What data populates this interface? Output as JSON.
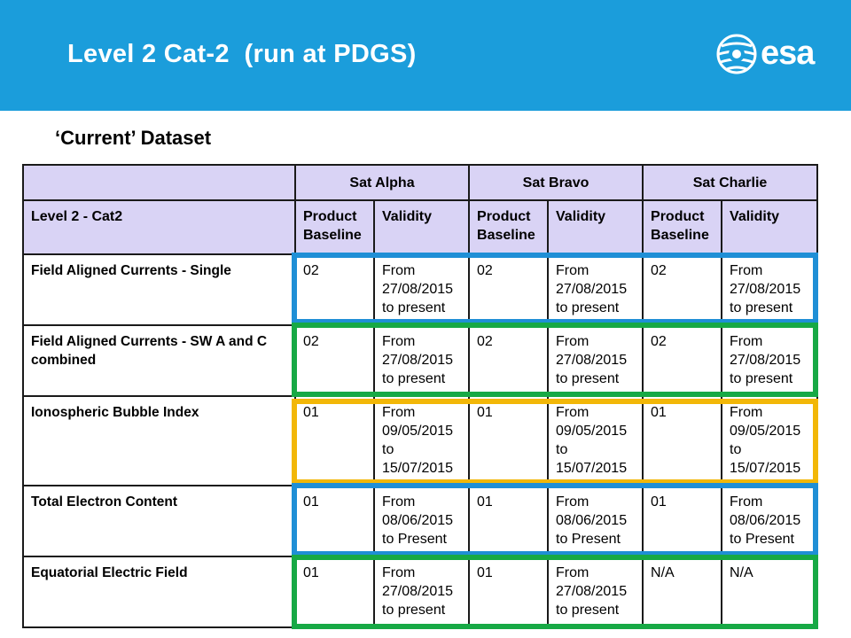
{
  "header": {
    "title": "Level 2 Cat-2  (run at PDGS)",
    "logo_text": "esa",
    "colors": {
      "banner": "#1b9ddb",
      "text": "#ffffff"
    }
  },
  "subtitle": "‘Current’ Dataset",
  "table": {
    "satellites": [
      "Sat Alpha",
      "Sat Bravo",
      "Sat Charlie"
    ],
    "row_header_label": "Level 2 - Cat2",
    "sub_headers": [
      "Product Baseline",
      "Validity"
    ],
    "rows": [
      {
        "name": "Field Aligned Currents - Single",
        "cells": [
          "02",
          "From 27/08/2015 to present",
          "02",
          "From 27/08/2015 to present",
          "02",
          "From 27/08/2015 to present"
        ],
        "highlight": "blue"
      },
      {
        "name": "Field Aligned Currents - SW A and C combined",
        "cells": [
          "02",
          "From 27/08/2015 to present",
          "02",
          "From 27/08/2015 to present",
          "02",
          "From 27/08/2015 to present"
        ],
        "highlight": "green"
      },
      {
        "name": "Ionospheric Bubble Index",
        "cells": [
          "01",
          "From 09/05/2015 to 15/07/2015",
          "01",
          "From 09/05/2015 to 15/07/2015",
          "01",
          "From 09/05/2015 to 15/07/2015"
        ],
        "highlight": "yellow"
      },
      {
        "name": "Total Electron Content",
        "cells": [
          "01",
          "From 08/06/2015 to Present",
          "01",
          "From 08/06/2015 to Present",
          "01",
          "From 08/06/2015 to Present"
        ],
        "highlight": "blue"
      },
      {
        "name": "Equatorial Electric Field",
        "cells": [
          "01",
          "From 27/08/2015 to present",
          "01",
          "From 27/08/2015 to present",
          "N/A",
          "N/A"
        ],
        "highlight": "green"
      }
    ],
    "colors": {
      "header_bg": "#d9d3f5",
      "blue": "#1f8fd6",
      "green": "#17a945",
      "yellow": "#f2b707"
    }
  }
}
